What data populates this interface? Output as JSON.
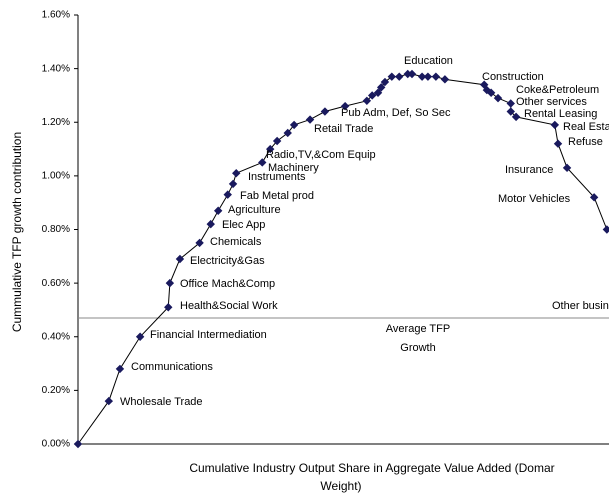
{
  "chart_data": {
    "type": "line",
    "y_label": "Cummulative TFP growth contribution",
    "x_label": [
      "Cumulative Industry Output Share in Aggregate Value Added (Domar",
      "Weight)"
    ],
    "xlim": [
      0,
      100
    ],
    "ylim": [
      0,
      1.6
    ],
    "yticks": [
      {
        "value": 0,
        "label": "0.00%"
      },
      {
        "value": 0.2,
        "label": "0.20%"
      },
      {
        "value": 0.4,
        "label": "0.40%"
      },
      {
        "value": 0.6,
        "label": "0.60%"
      },
      {
        "value": 0.8,
        "label": "0.80%"
      },
      {
        "value": 1.0,
        "label": "1.00%"
      },
      {
        "value": 1.2,
        "label": "1.20%"
      },
      {
        "value": 1.4,
        "label": "1.40%"
      },
      {
        "value": 1.6,
        "label": "1.60%"
      }
    ],
    "series": [
      {
        "color": "#1a1a5e",
        "x": [
          0,
          5.8,
          7.9,
          11.7,
          17.0,
          17.3,
          19.2,
          22.9,
          25.0,
          26.4,
          28.2,
          29.2,
          29.8,
          34.7,
          36.2,
          37.5,
          39.5,
          40.7,
          43.7,
          46.5,
          50.3,
          54.4,
          55.4,
          56.5,
          57.1,
          57.8,
          59.1,
          60.5,
          62.1,
          62.9,
          64.8,
          65.9,
          67.4,
          69.1,
          76.5,
          77.0,
          77.8,
          79.1,
          81.5,
          81.5,
          82.5,
          89.8,
          90.4,
          92.1,
          97.2,
          99.6
        ],
        "values": [
          0,
          0.16,
          0.28,
          0.4,
          0.51,
          0.6,
          0.69,
          0.75,
          0.82,
          0.87,
          0.93,
          0.97,
          1.01,
          1.05,
          1.1,
          1.13,
          1.16,
          1.19,
          1.21,
          1.24,
          1.26,
          1.28,
          1.3,
          1.31,
          1.33,
          1.35,
          1.37,
          1.37,
          1.38,
          1.38,
          1.37,
          1.37,
          1.37,
          1.36,
          1.34,
          1.32,
          1.31,
          1.29,
          1.27,
          1.24,
          1.22,
          1.19,
          1.12,
          1.03,
          0.92,
          0.8
        ]
      }
    ],
    "average": {
      "value": 0.47,
      "label": [
        "Average TFP",
        "Growth"
      ]
    },
    "annotations": [
      "Wholesale Trade",
      "Communications",
      "Financial Intermediation",
      "Health&Social Work",
      "Office Mach&Comp",
      "Electricity&Gas",
      "Chemicals",
      "Elec App",
      "Agriculture",
      "Fab Metal prod",
      "Instruments",
      "Machinery",
      "Radio,TV,&Com Equip",
      "Retail Trade",
      "Pub Adm, Def, So Sec",
      "Education",
      "Construction",
      "Coke&Petroleum",
      "Other services",
      "Rental Leasing",
      "Real Esta",
      "Refuse",
      "Insurance",
      "Motor Vehicles",
      "Other busin"
    ]
  }
}
